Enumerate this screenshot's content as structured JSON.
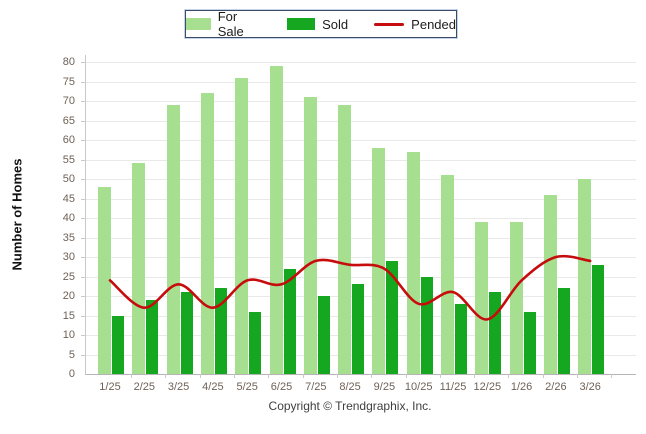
{
  "legend": {
    "items": [
      {
        "label": "For Sale",
        "swatch": "box",
        "color": "#A6DF90"
      },
      {
        "label": "Sold",
        "swatch": "box",
        "color": "#14A71F"
      },
      {
        "label": "Pended",
        "swatch": "line",
        "color": "#C60C0C"
      }
    ]
  },
  "footer": {
    "copyright": "Copyright © Trendgraphix, Inc."
  },
  "colors": {
    "for_sale": "#A6DF90",
    "sold": "#14A71F",
    "pended": "#C60C0C",
    "gridline": "#e9e9e9",
    "tick_text": "#6f6157"
  },
  "chart_data": {
    "type": "bar",
    "categories": [
      "1/25",
      "2/25",
      "3/25",
      "4/25",
      "5/25",
      "6/25",
      "7/25",
      "8/25",
      "9/25",
      "10/25",
      "11/25",
      "12/25",
      "1/26",
      "2/26",
      "3/26"
    ],
    "series": [
      {
        "name": "For Sale",
        "type": "bar",
        "color": "#A6DF90",
        "values": [
          48,
          54,
          69,
          72,
          76,
          79,
          71,
          69,
          58,
          57,
          51,
          39,
          39,
          46,
          50
        ]
      },
      {
        "name": "Sold",
        "type": "bar",
        "color": "#14A71F",
        "values": [
          15,
          19,
          21,
          22,
          16,
          27,
          20,
          23,
          29,
          25,
          18,
          21,
          16,
          22,
          28
        ]
      },
      {
        "name": "Pended",
        "type": "line",
        "color": "#C60C0C",
        "values": [
          24,
          17,
          23,
          17,
          24,
          23,
          29,
          28,
          27,
          18,
          21,
          14,
          24,
          30,
          29
        ]
      }
    ],
    "title": "",
    "xlabel": "",
    "ylabel": "Number of Homes",
    "ylim": [
      0,
      80
    ],
    "ytick_step": 5,
    "grid": true,
    "legend_position": "top-center"
  }
}
